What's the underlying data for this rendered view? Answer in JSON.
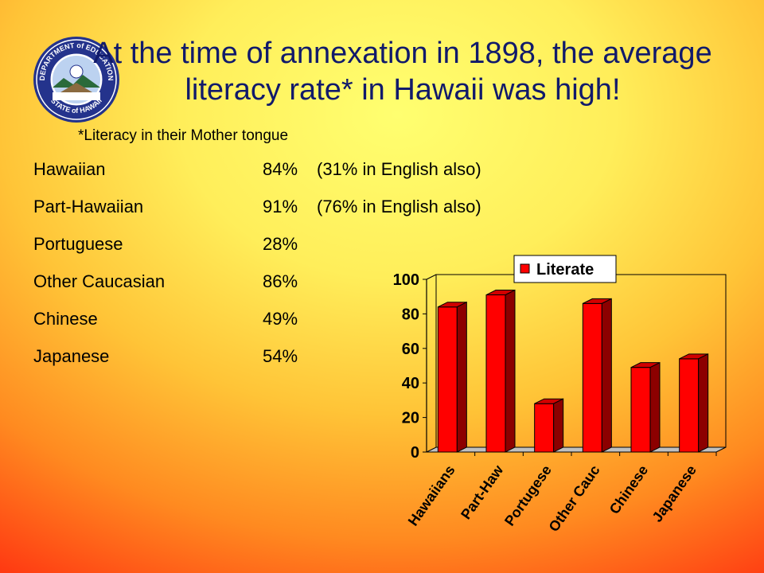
{
  "slide": {
    "title": "At the time of annexation in 1898, the average literacy rate* in Hawaii was high!",
    "footnote": "*Literacy in their Mother tongue",
    "seal": {
      "top_text": "DEPARTMENT of EDUCATION",
      "bottom_text": "STATE of HAWAII"
    },
    "rows": [
      {
        "group": "Hawaiian",
        "rate": "84%",
        "extra": "(31% in English also)"
      },
      {
        "group": "Part-Hawaiian",
        "rate": "91%",
        "extra": "(76% in English also)"
      },
      {
        "group": "Portuguese",
        "rate": "28%",
        "extra": ""
      },
      {
        "group": "Other Caucasian",
        "rate": "86%",
        "extra": ""
      },
      {
        "group": "Chinese",
        "rate": "49%",
        "extra": ""
      },
      {
        "group": "Japanese",
        "rate": "54%",
        "extra": ""
      }
    ]
  },
  "chart_data": {
    "type": "bar",
    "style": "3d-column",
    "categories": [
      "Hawaiians",
      "Part-Haw",
      "Portugese",
      "Other Cauc",
      "Chinese",
      "Japanese"
    ],
    "series": [
      {
        "name": "Literate",
        "values": [
          84,
          91,
          28,
          86,
          49,
          54
        ],
        "color": "#ff0000"
      }
    ],
    "ylim": [
      0,
      100
    ],
    "yticks": [
      0,
      20,
      40,
      60,
      80,
      100
    ],
    "grid": false,
    "legend": "top-right",
    "title": "",
    "xlabel": "",
    "ylabel": ""
  }
}
